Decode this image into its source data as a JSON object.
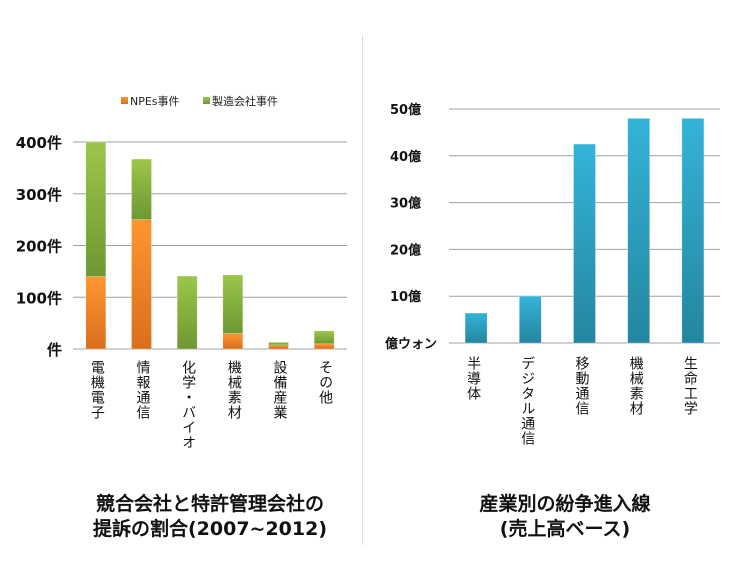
{
  "chart_data": [
    {
      "type": "bar",
      "stacked": true,
      "title": "競合会社と特許管理会社の\n提訴の割合(2007~2012)",
      "title_lines": [
        "競合会社と特許管理会社の",
        "提訴の割合(2007~2012)"
      ],
      "categories": [
        "電機電子",
        "情報通信",
        "化学・バイオ",
        "機械素材",
        "設備産業",
        "その他"
      ],
      "series": [
        {
          "name": "NPEs事件",
          "color": "#f7902a",
          "values": [
            140,
            250,
            0,
            30,
            8,
            10
          ]
        },
        {
          "name": "製造会社事件",
          "color": "#8ab43e",
          "values": [
            260,
            117,
            141,
            113,
            5,
            25
          ]
        }
      ],
      "yticks": [
        0,
        100,
        200,
        300,
        400
      ],
      "ytick_labels": [
        "件",
        "100件",
        "200件",
        "300件",
        "400件"
      ],
      "ylim": [
        0,
        400
      ],
      "grid": true,
      "legend": "top"
    },
    {
      "type": "bar",
      "title": "産業別の紛争進入線\n(売上高ベース)",
      "title_lines": [
        "産業別の紛争進入線",
        "(売上高ベース)"
      ],
      "categories": [
        "半導体",
        "デジタル通信",
        "移動通信",
        "機械素材",
        "生命工学"
      ],
      "values": [
        6.4,
        10,
        42.5,
        48,
        48
      ],
      "color": "#2fa8cc",
      "yticks": [
        0,
        10,
        20,
        30,
        40,
        50
      ],
      "ytick_labels": [
        "億ウォン",
        "10億",
        "20億",
        "30億",
        "40億",
        "50億"
      ],
      "ylim": [
        0,
        50
      ],
      "grid": true
    }
  ]
}
